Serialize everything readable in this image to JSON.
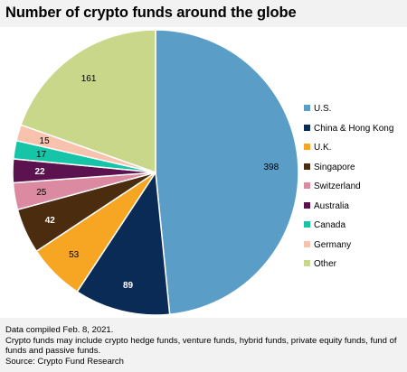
{
  "title": "Number of crypto funds around the globe",
  "chart_data": {
    "type": "pie",
    "title": "Number of crypto funds around the globe",
    "slices": [
      {
        "label": "U.S.",
        "value": 398,
        "color": "#5a9dc7",
        "label_color": "#000000"
      },
      {
        "label": "China & Hong Kong",
        "value": 89,
        "color": "#0b2b57",
        "label_color": "#ffffff"
      },
      {
        "label": "U.K.",
        "value": 53,
        "color": "#f6a623",
        "label_color": "#000000"
      },
      {
        "label": "Singapore",
        "value": 42,
        "color": "#4b2c0e",
        "label_color": "#ffffff"
      },
      {
        "label": "Switzerland",
        "value": 25,
        "color": "#dc8aa2",
        "label_color": "#000000"
      },
      {
        "label": "Australia",
        "value": 22,
        "color": "#5d1250",
        "label_color": "#ffffff"
      },
      {
        "label": "Canada",
        "value": 17,
        "color": "#16c4a7",
        "label_color": "#000000"
      },
      {
        "label": "Germany",
        "value": 15,
        "color": "#f9c2ad",
        "label_color": "#000000"
      },
      {
        "label": "Other",
        "value": 161,
        "color": "#c8d78a",
        "label_color": "#000000"
      }
    ],
    "legend_position": "right"
  },
  "notes": [
    "Data compiled Feb. 8, 2021.",
    "Crypto funds may include crypto hedge funds, venture funds, hybrid funds, private equity funds, fund of funds and passive funds.",
    "Source: Crypto Fund Research"
  ]
}
